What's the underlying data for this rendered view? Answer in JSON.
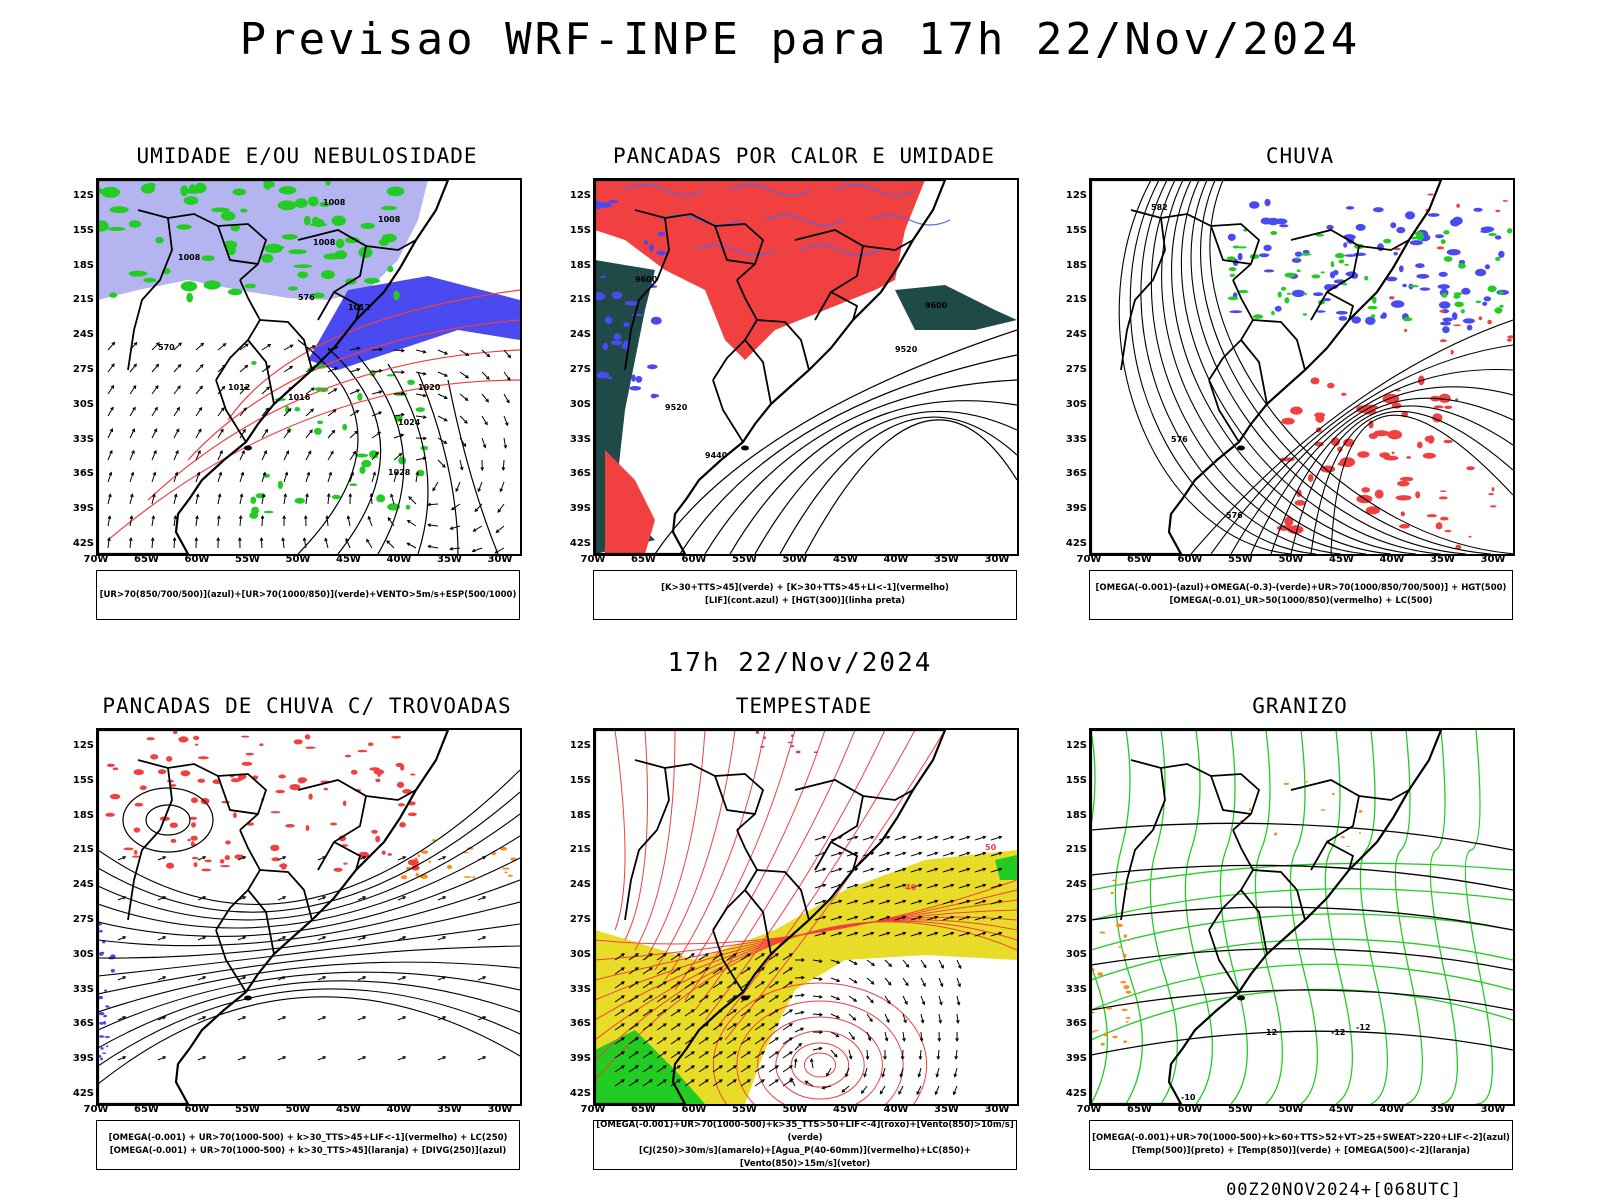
{
  "title": "Previsao WRF-INPE  para 17h 22/Nov/2024",
  "middle_title": "17h 22/Nov/2024",
  "run_stamp": "00Z20NOV2024+[068UTC]",
  "lat_ticks": [
    "12S",
    "15S",
    "18S",
    "21S",
    "24S",
    "27S",
    "30S",
    "33S",
    "36S",
    "39S",
    "42S"
  ],
  "lon_ticks": [
    "70W",
    "65W",
    "60W",
    "55W",
    "50W",
    "45W",
    "40W",
    "35W",
    "30W"
  ],
  "colors": {
    "humidity_blue": "#b4b4f0",
    "strong_blue": "#4a4af0",
    "green": "#22cc22",
    "red": "#f04040",
    "dark_teal": "#1f4a48",
    "yellow": "#e8dc28",
    "orange": "#ff8c1a",
    "purple": "#c030c0",
    "contour_black": "#000000"
  },
  "panels": [
    {
      "id": "umidade",
      "title": "UMIDADE E/OU NEBULOSIDADE",
      "legend": [
        "[UR>70(850/700/500)](azul)+[UR>70(1000/850)](verde)+VENTO>5m/s+ESP(500/1000)"
      ],
      "contour_labels": [
        "1008",
        "1008",
        "1008",
        "1008",
        "1012",
        "1012",
        "1016",
        "1020",
        "1024",
        "1028",
        "576",
        "570"
      ]
    },
    {
      "id": "pancadas-calor",
      "title": "PANCADAS POR CALOR E UMIDADE",
      "legend": [
        "[K>30+TTS>45](verde) + [K>30+TTS>45+LI<-1](vermelho)",
        "[LIF](cont.azul) + [HGT(300)](linha preta)"
      ],
      "contour_labels": [
        "9600",
        "9600",
        "9520",
        "9520",
        "9440"
      ]
    },
    {
      "id": "chuva",
      "title": "CHUVA",
      "legend": [
        "[OMEGA(-0.001)-(azul)+OMEGA(-0.3)-(verde)+UR>70(1000/850/700/500)] + HGT(500)",
        "[OMEGA(-0.01)_UR>50(1000/850)(vermelho) + LC(500)"
      ],
      "contour_labels": [
        "582",
        "576",
        "576",
        "582"
      ]
    },
    {
      "id": "trovoadas",
      "title": "PANCADAS DE CHUVA C/ TROVOADAS",
      "legend": [
        "[OMEGA(-0.001) + UR>70(1000-500) + k>30_TTS>45+LIF<-1](vermelho) + LC(250)",
        "[OMEGA(-0.001) + UR>70(1000-500) + k>30_TTS>45](laranja) + [DIVG(250)](azul)"
      ],
      "contour_labels": []
    },
    {
      "id": "tempestade",
      "title": "TEMPESTADE",
      "legend": [
        "[OMEGA(-0.001)+UR>70(1000-500)+k>35_TTS>50+LIF<-4](roxo)+[Vento(850)>10m/s](verde)",
        "[CJ(250)>30m/s](amarelo)+[Agua_P(40-60mm)](vermelho)+LC(850)+[Vento(850)>15m/s](vetor)"
      ],
      "contour_labels": [
        "50",
        "40"
      ]
    },
    {
      "id": "granizo",
      "title": "GRANIZO",
      "legend": [
        "[OMEGA(-0.001)+UR>70(1000-500)+k>60+TTS>52+VT>25+SWEAT>220+LIF<-2](azul)",
        "[Temp(500)](preto) + [Temp(850)](verde) + [OMEGA(500)<-2](laranja)"
      ],
      "contour_labels": [
        "-12",
        "-12",
        "-12",
        "-10",
        "12"
      ]
    }
  ]
}
